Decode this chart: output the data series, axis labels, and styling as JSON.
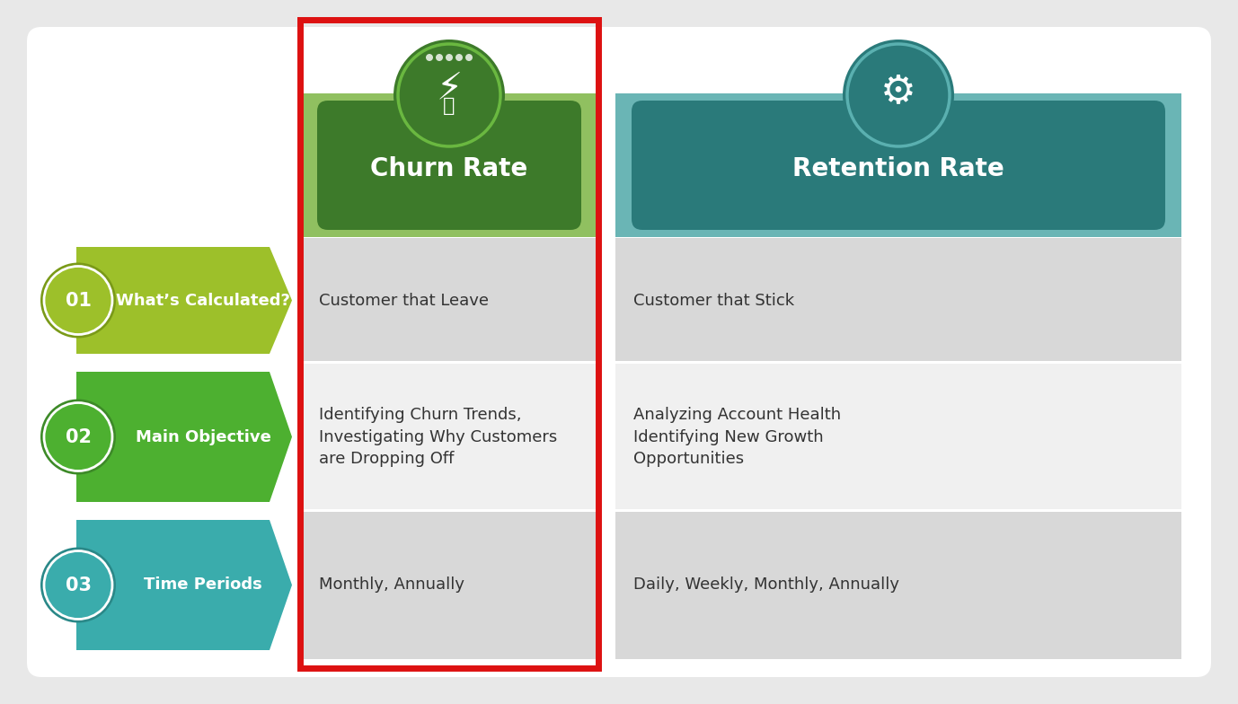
{
  "bg_color": "#e8e8e8",
  "churn_header_bg": "#3d7a2a",
  "churn_header_light": "#90c060",
  "churn_title": "Churn Rate",
  "retention_header_bg": "#2a7a7a",
  "retention_header_light": "#6ab5b5",
  "retention_title": "Retention Rate",
  "row_labels": [
    "What’s Calculated?",
    "Main Objective",
    "Time Periods"
  ],
  "row_numbers": [
    "01",
    "02",
    "03"
  ],
  "row_label_bg_colors": [
    "#9dc02a",
    "#4db030",
    "#3aacac"
  ],
  "row_number_border_colors": [
    "#7a9a18",
    "#3d8a28",
    "#2a8888"
  ],
  "churn_values": [
    "Customer that Leave",
    "Identifying Churn Trends,\nInvestigating Why Customers\nare Dropping Off",
    "Monthly, Annually"
  ],
  "retention_values": [
    "Customer that Stick",
    "Analyzing Account Health\nIdentifying New Growth\nOpportunities",
    "Daily, Weekly, Monthly, Annually"
  ],
  "cell_bg_row0": "#d8d8d8",
  "cell_bg_row1": "#f0f0f0",
  "cell_bg_row2": "#d8d8d8",
  "red_border": "#dd1111",
  "text_dark": "#333333",
  "white": "#ffffff"
}
